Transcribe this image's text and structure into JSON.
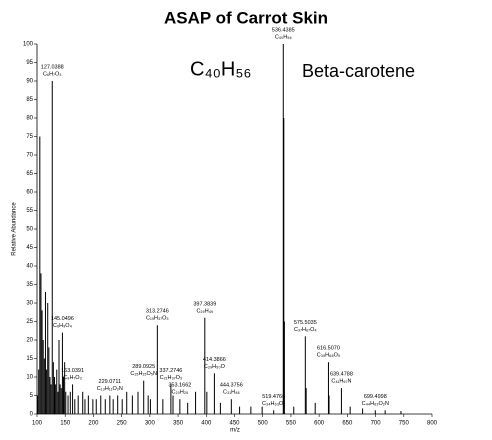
{
  "chart_data": {
    "type": "spectrum",
    "title": "ASAP of Carrot Skin",
    "x_label": "m/z",
    "y_label": "Relative Abundance",
    "formula_annotation": "C₄₀H₅₆",
    "compound_annotation": "Beta-carotene",
    "annotation_color": "#1a1aff",
    "color": "#000000",
    "xlim": [
      100,
      800
    ],
    "ylim": [
      0,
      100
    ],
    "xticks": [
      100,
      150,
      200,
      250,
      300,
      350,
      400,
      450,
      500,
      550,
      600,
      650,
      700,
      750,
      800
    ],
    "yticks": [
      0,
      5,
      10,
      15,
      20,
      25,
      30,
      35,
      40,
      45,
      50,
      55,
      60,
      65,
      70,
      75,
      80,
      85,
      90,
      95,
      100
    ],
    "x": [
      101,
      103,
      105,
      107,
      109,
      111,
      113,
      115,
      117,
      119,
      121,
      123,
      125,
      127.0388,
      129,
      131,
      133,
      135,
      137,
      139,
      141,
      143,
      145.0496,
      147,
      149,
      151,
      155,
      159,
      163.0391,
      167,
      173,
      181,
      185,
      191,
      199,
      205,
      213,
      221,
      229.0711,
      235,
      243,
      251,
      259,
      269,
      279,
      289.0925,
      297,
      301,
      313.2746,
      323,
      337.2746,
      341,
      353.1662,
      367,
      381,
      397.3839,
      401,
      414.3866,
      425,
      444.3756,
      459,
      479,
      499,
      519.4766,
      536.4385,
      537.4,
      538.4,
      555,
      575.5035,
      577,
      593,
      616.507,
      617.5,
      639.4788,
      655,
      677,
      699.4998,
      717,
      745
    ],
    "values": [
      5,
      12,
      75,
      38,
      28,
      20,
      15,
      33,
      12,
      30,
      18,
      10,
      8,
      90,
      14,
      10,
      8,
      12,
      6,
      20,
      8,
      7,
      22,
      10,
      14,
      6,
      5,
      6,
      8,
      4,
      5,
      6,
      4,
      5,
      4,
      4,
      5,
      4,
      5,
      4,
      5,
      4,
      6,
      5,
      6,
      9,
      5,
      4,
      24,
      4,
      8,
      5,
      4,
      3,
      6,
      26,
      6,
      11,
      3,
      4,
      2,
      2,
      2,
      1,
      100,
      80,
      25,
      2,
      21,
      7,
      3,
      14,
      5,
      7,
      2,
      1.5,
      1,
      1,
      0.8
    ],
    "annotations": [
      {
        "x": 127.0388,
        "text": "127.0388",
        "formula": "C₆H₇O₃"
      },
      {
        "x": 145.0496,
        "text": "145.0496",
        "formula": "C₆H₉O₄"
      },
      {
        "x": 163.0391,
        "text": "163.0391",
        "formula": "C₉H₇O₃"
      },
      {
        "x": 229.0711,
        "text": "229.0711",
        "formula": "C₁₃H₁₁O₂N"
      },
      {
        "x": 289.0925,
        "text": "289.0925",
        "formula": "C₁₅H₁₅O₅N"
      },
      {
        "x": 313.2746,
        "text": "313.2746",
        "formula": "C₁₉H₃₇O₃"
      },
      {
        "x": 337.2746,
        "text": "337.2746",
        "formula": "C₂₁H₃₇O₃"
      },
      {
        "x": 353.1662,
        "text": "353.1662",
        "formula": "C₂₀H₂₅"
      },
      {
        "x": 397.3839,
        "text": "397.3839",
        "formula": "C₂₉H₄₉"
      },
      {
        "x": 414.3866,
        "text": "414.3866",
        "formula": "C₂₉H₅₀O"
      },
      {
        "x": 444.3756,
        "text": "444.3756",
        "formula": "C₃₁H₄₈"
      },
      {
        "x": 519.4766,
        "text": "519.4766",
        "formula": "C₃₄H₆₃O₂"
      },
      {
        "x": 536.4385,
        "text": "536.4385",
        "formula": "C₄₀H₅₆"
      },
      {
        "x": 575.5035,
        "text": "575.5035",
        "formula": "C₃₇H₆₇O₄"
      },
      {
        "x": 616.507,
        "text": "616.5070",
        "formula": "C₃₉H₆₈O₅"
      },
      {
        "x": 639.4788,
        "text": "639.4788",
        "formula": "C₄₁H₆₇N"
      },
      {
        "x": 699.4998,
        "text": "699.4998",
        "formula": "C₄₄H₆₃O₂N"
      }
    ]
  }
}
